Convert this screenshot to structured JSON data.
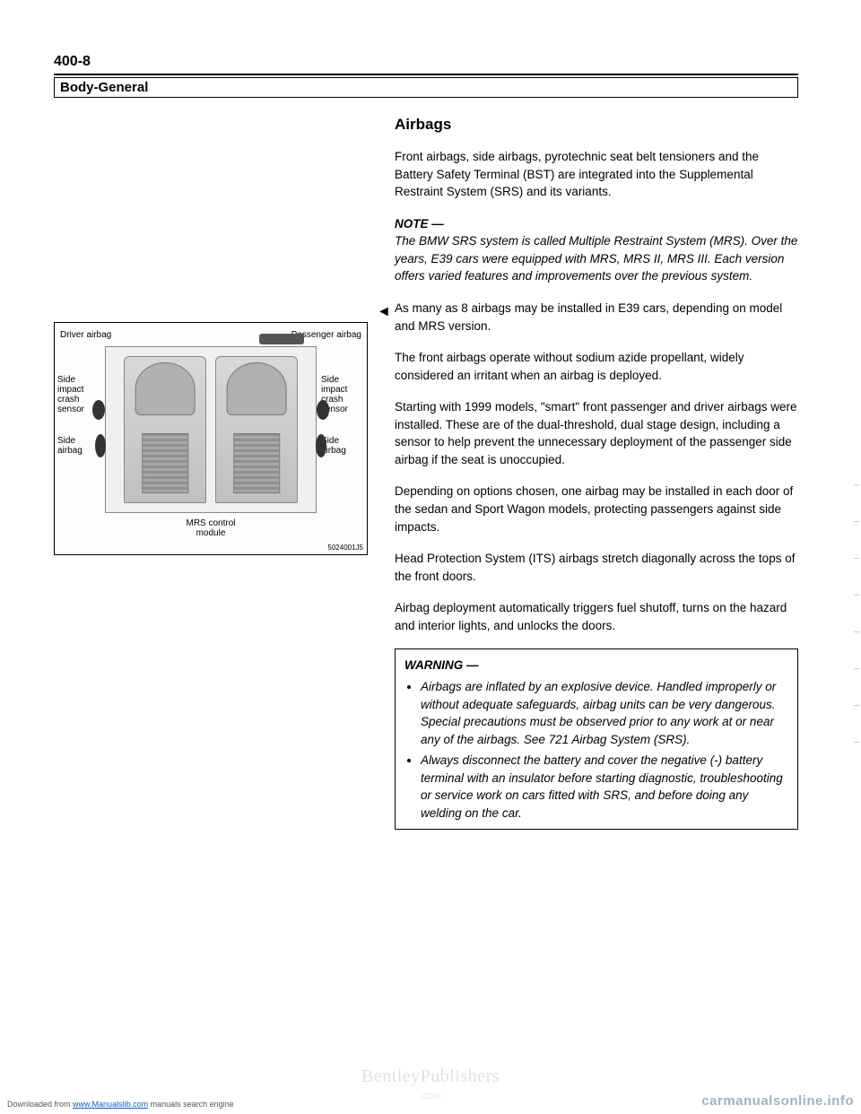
{
  "page_number": "400-8",
  "section_title": "Body-General",
  "heading": "Airbags",
  "intro": "Front airbags, side airbags, pyrotechnic seat belt tensioners and the Battery Safety Terminal (BST) are integrated into the Supplemental Restraint System (SRS) and its variants.",
  "note_label": "NOTE —",
  "note_text": "The BMW SRS system is called Multiple Restraint System (MRS). Over the years, E39 cars were equipped with MRS, MRS II, MRS III. Each version offers varied features and improvements over the previous system.",
  "para_arrow": "As many as 8 airbags may be installed in E39 cars, depending on model and MRS version.",
  "para2": "The front airbags operate without sodium azide propellant, widely considered an irritant when an airbag is deployed.",
  "para3": "Starting with 1999 models, \"smart\" front passenger and driver airbags were installed. These are of the dual-threshold, dual stage design, including a sensor to help prevent the unnecessary deployment of the passenger side airbag if the seat is unoccupied.",
  "para4": "Depending on options chosen, one airbag may be installed in each door of the sedan and Sport Wagon models, protecting passengers against side impacts.",
  "para5": "Head Protection System (ITS) airbags stretch diagonally across the tops of the front doors.",
  "para6": "Airbag deployment automatically triggers fuel shutoff, turns on the hazard and interior lights, and unlocks the doors.",
  "warning_title": "WARNING —",
  "warning_item1": "Airbags are inflated by an explosive device. Handled improperly or without adequate safeguards, airbag units can be very dangerous. Special precautions must be observed prior to any work at or near any of the airbags. See 721 Airbag System (SRS).",
  "warning_item2": "Always disconnect the battery and cover the negative (-) battery terminal with an insulator before starting diagnostic, troubleshooting or service work on cars fitted with SRS, and before doing any welding on the car.",
  "diagram": {
    "driver_label": "Driver airbag",
    "passenger_label": "Passenger airbag",
    "side_impact_l": "Side impact crash sensor",
    "side_impact_r": "Side impact crash sensor",
    "side_airbag_l": "Side airbag",
    "side_airbag_r": "Side airbag",
    "mrs_label": "MRS control module",
    "fig_id": "5024001J5"
  },
  "watermark": "BentleyPublishers",
  "watermark_sub": ".com",
  "footer_left_pre": "Downloaded from ",
  "footer_left_link": "www.Manualslib.com",
  "footer_left_post": " manuals search engine",
  "footer_mid": "",
  "footer_right": "carmanualsonline.info"
}
